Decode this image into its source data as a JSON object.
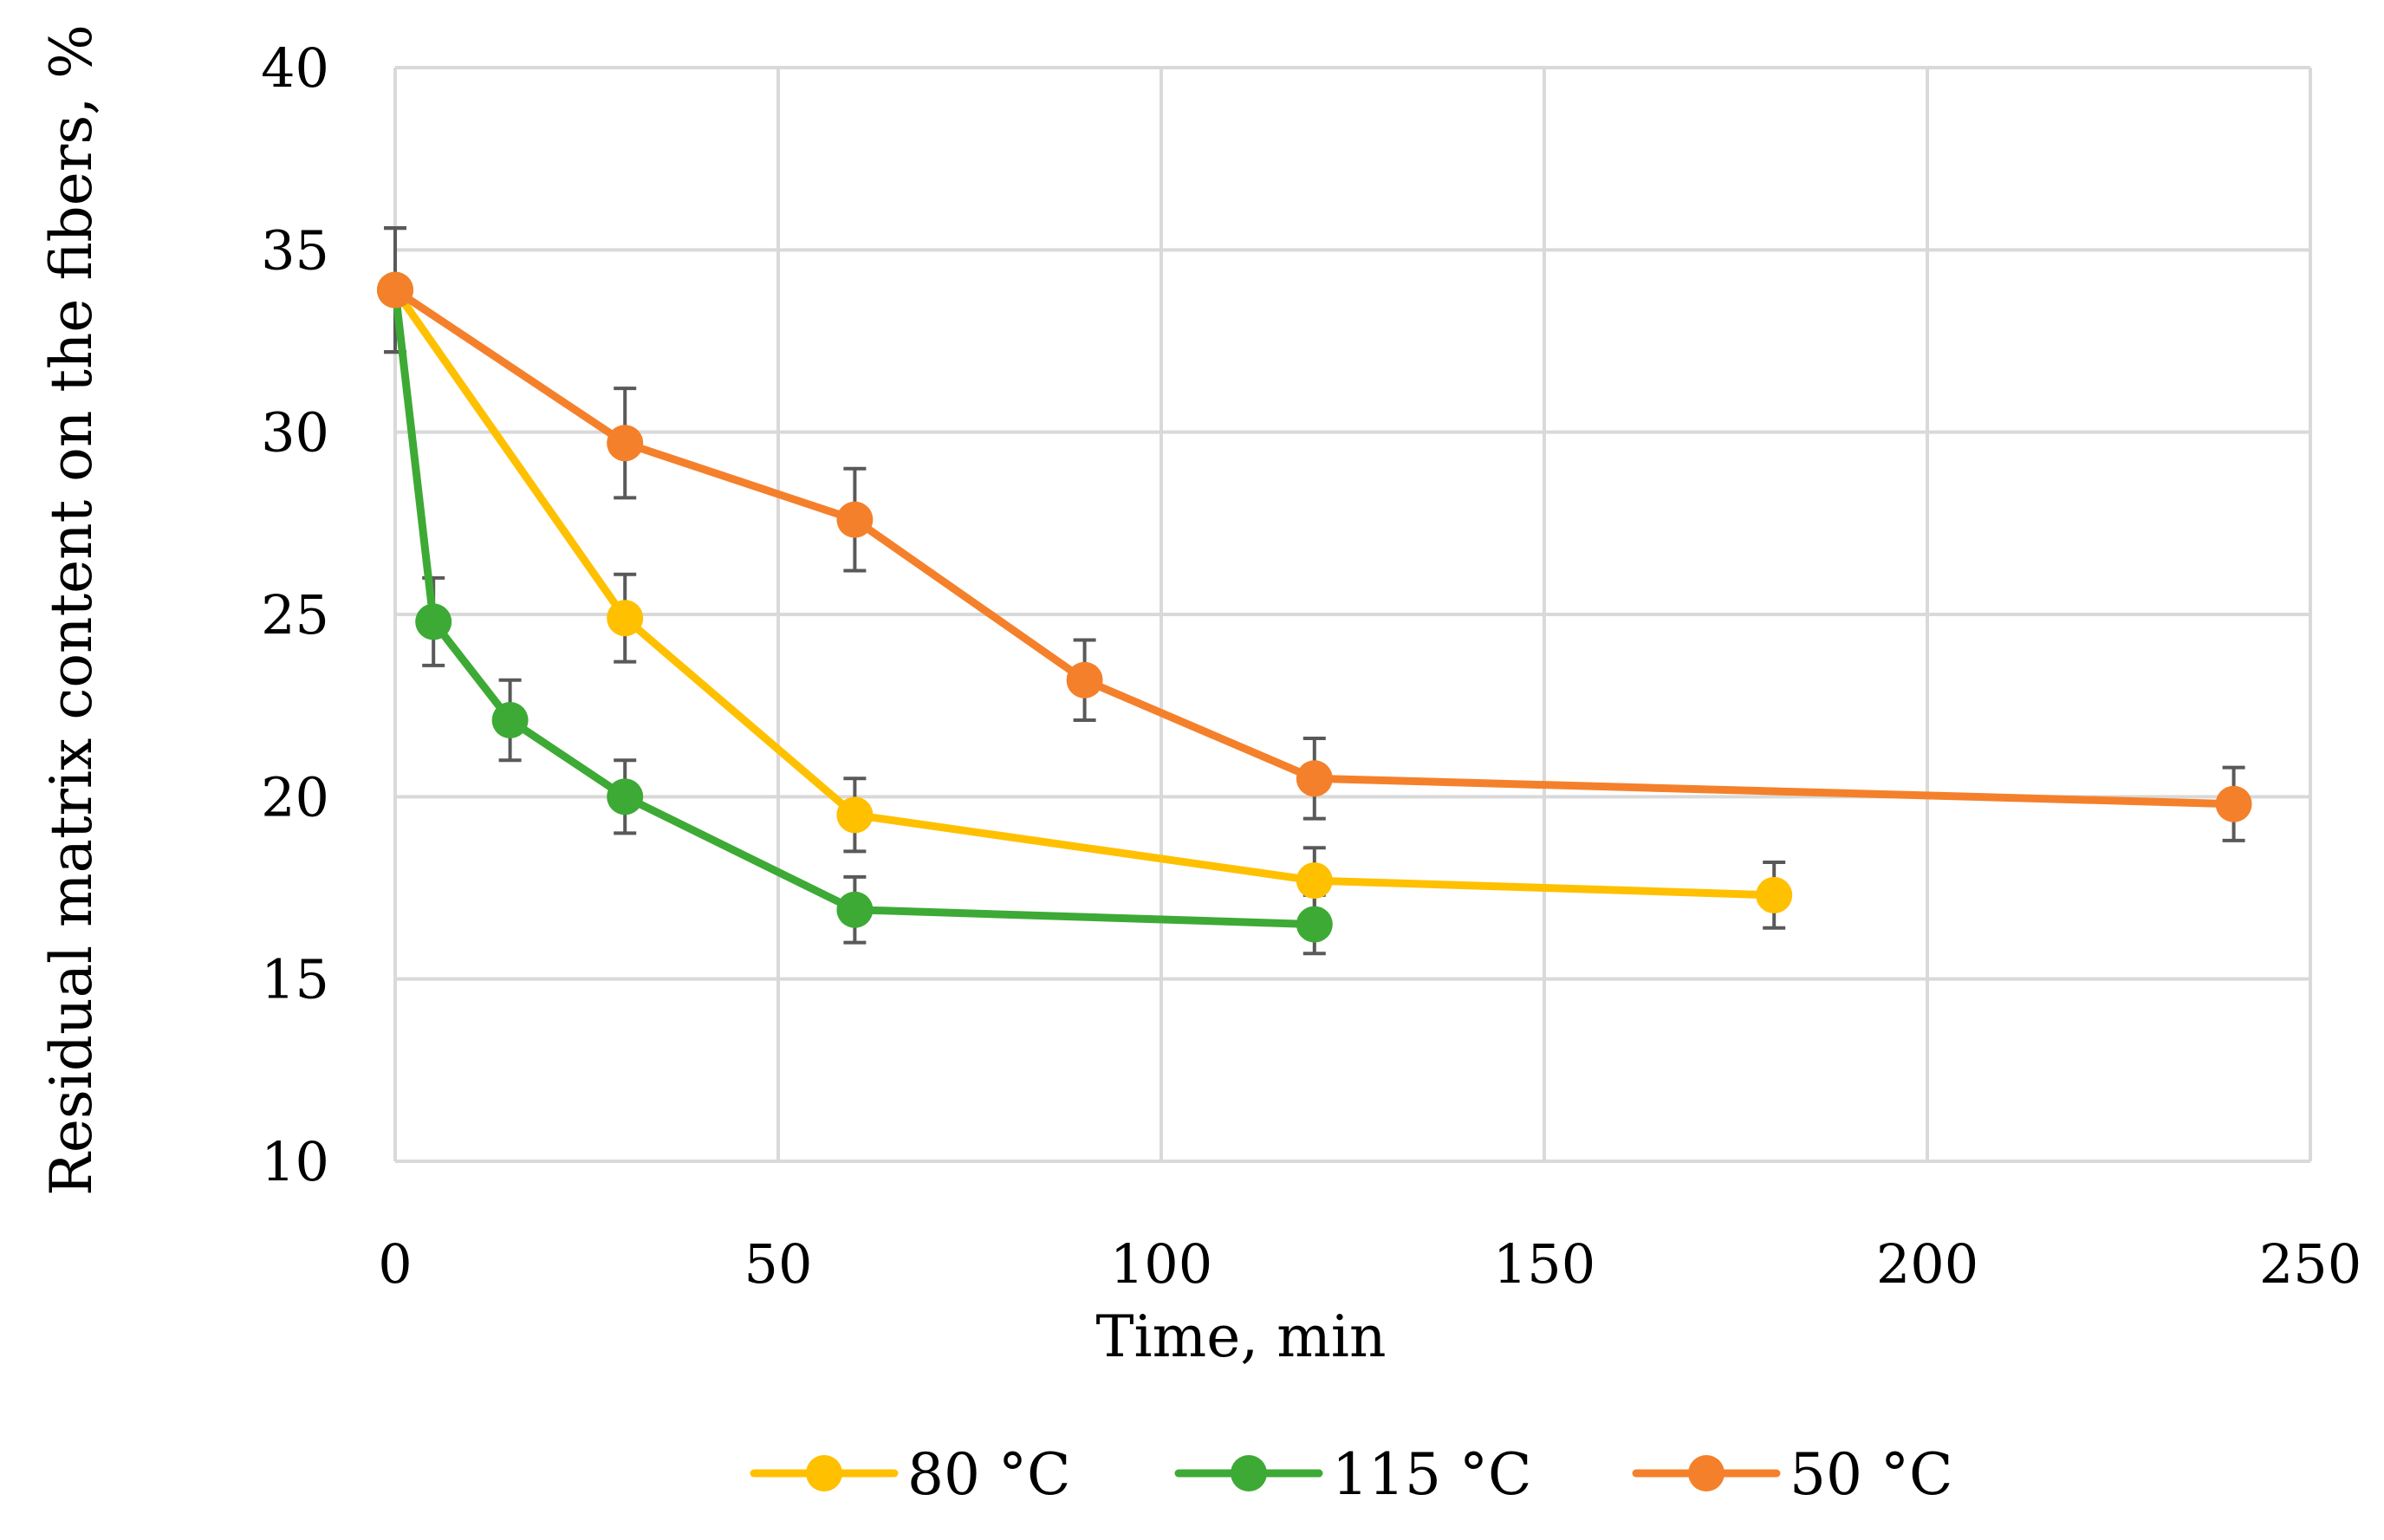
{
  "chart_data": {
    "type": "line",
    "title": "",
    "xlabel": "Time, min",
    "ylabel": "Residual matrix content on the fibers, %",
    "xlim": [
      0,
      250
    ],
    "ylim": [
      10,
      40
    ],
    "x_ticks": [
      0,
      50,
      100,
      150,
      200,
      250
    ],
    "y_ticks": [
      10,
      15,
      20,
      25,
      30,
      35,
      40
    ],
    "grid": true,
    "legend_position": "bottom-center",
    "series": [
      {
        "name": "80 °C",
        "color": "#FFC000",
        "x": [
          0,
          30,
          60,
          120,
          180
        ],
        "y": [
          33.9,
          24.9,
          19.5,
          17.7,
          17.3
        ],
        "error": [
          1.7,
          1.2,
          1.0,
          0.9,
          0.9
        ]
      },
      {
        "name": "115 °C",
        "color": "#3DAA35",
        "x": [
          0,
          5,
          15,
          30,
          60,
          120
        ],
        "y": [
          33.9,
          24.8,
          22.1,
          20.0,
          16.9,
          16.5
        ],
        "error": [
          1.7,
          1.2,
          1.1,
          1.0,
          0.9,
          0.8
        ]
      },
      {
        "name": "50 °C",
        "color": "#F5802B",
        "x": [
          0,
          30,
          60,
          90,
          120,
          240
        ],
        "y": [
          33.9,
          29.7,
          27.6,
          23.2,
          20.5,
          19.8
        ],
        "error": [
          1.7,
          1.5,
          1.4,
          1.1,
          1.1,
          1.0
        ]
      }
    ]
  }
}
